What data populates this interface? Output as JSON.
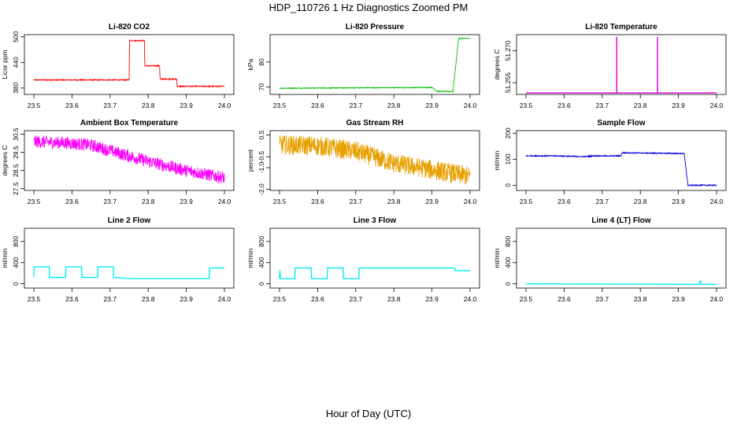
{
  "page": {
    "title": "HDP_110726  1 Hz Diagnostics Zoomed PM",
    "xlabel": "Hour of Day (UTC)"
  },
  "chart_data": [
    {
      "type": "line",
      "title": "Li-820 CO2",
      "xlabel": "",
      "ylabel": "Licor ppm",
      "color": "#ff0000",
      "xlim": [
        23.5,
        24.0
      ],
      "ylim": [
        365,
        505
      ],
      "xticks": [
        23.5,
        23.6,
        23.7,
        23.8,
        23.9,
        24.0
      ],
      "xtick_labels": [
        "23.5",
        "23.6",
        "23.7",
        "23.8",
        "23.9",
        "24.0"
      ],
      "yticks": [
        380,
        440,
        500
      ],
      "ytick_labels": [
        "380",
        "440",
        "500"
      ],
      "noise": 1.2,
      "series": [
        {
          "x": [
            23.5,
            23.75,
            23.751,
            23.79,
            23.791,
            23.83,
            23.831,
            23.875,
            23.876,
            23.96,
            23.961,
            24.0
          ],
          "y": [
            399,
            399,
            491,
            491,
            432,
            432,
            401,
            401,
            384,
            384,
            384,
            384
          ]
        }
      ]
    },
    {
      "type": "line",
      "title": "Li-820 Pressure",
      "xlabel": "",
      "ylabel": "kPa",
      "color": "#00c000",
      "xlim": [
        23.5,
        24.0
      ],
      "ylim": [
        67,
        91
      ],
      "xticks": [
        23.5,
        23.6,
        23.7,
        23.8,
        23.9,
        24.0
      ],
      "xtick_labels": [
        "23.5",
        "23.6",
        "23.7",
        "23.8",
        "23.9",
        "24.0"
      ],
      "yticks": [
        70,
        80
      ],
      "ytick_labels": [
        "70",
        "80"
      ],
      "noise": 0.15,
      "series": [
        {
          "x": [
            23.5,
            23.9,
            23.915,
            23.955,
            23.97,
            24.0
          ],
          "y": [
            69.5,
            69.8,
            68.2,
            68.2,
            89.5,
            89.5
          ]
        }
      ]
    },
    {
      "type": "line",
      "title": "Li-820 Temperature",
      "xlabel": "",
      "ylabel": "degrees C",
      "color": "#e000e0",
      "xlim": [
        23.5,
        24.0
      ],
      "ylim": [
        51.2495,
        51.2775
      ],
      "xticks": [
        23.5,
        23.6,
        23.7,
        23.8,
        23.9,
        24.0
      ],
      "xtick_labels": [
        "23.5",
        "23.6",
        "23.7",
        "23.8",
        "23.9",
        "24.0"
      ],
      "yticks": [
        51.255,
        51.27
      ],
      "ytick_labels": [
        "51.255",
        "51.270"
      ],
      "noise": 0,
      "series": [
        {
          "x": [
            23.5,
            23.738,
            23.7381,
            23.7382,
            23.845,
            23.8451,
            23.8452,
            24.0
          ],
          "y": [
            51.2502,
            51.2502,
            51.2765,
            51.2502,
            51.2502,
            51.2765,
            51.2502,
            51.2502
          ]
        }
      ]
    },
    {
      "type": "line",
      "title": "Ambient Box Temperature",
      "xlabel": "",
      "ylabel": "degrees C",
      "color": "#ff00ff",
      "xlim": [
        23.5,
        24.0
      ],
      "ylim": [
        27.4,
        30.7
      ],
      "xticks": [
        23.5,
        23.6,
        23.7,
        23.8,
        23.9,
        24.0
      ],
      "xtick_labels": [
        "23.5",
        "23.6",
        "23.7",
        "23.8",
        "23.9",
        "24.0"
      ],
      "yticks": [
        27.5,
        28.5,
        29.5,
        30.5
      ],
      "ytick_labels": [
        "27.5",
        "28.5",
        "29.5",
        "30.5"
      ],
      "noise": 0.35,
      "series": [
        {
          "x": [
            23.5,
            23.6,
            23.65,
            23.7,
            23.8,
            23.9,
            24.0
          ],
          "y": [
            30.1,
            30.0,
            29.9,
            29.6,
            29.0,
            28.5,
            28.1
          ]
        }
      ]
    },
    {
      "type": "line",
      "title": "Gas Stream RH",
      "xlabel": "",
      "ylabel": "percent",
      "color": "#e8a000",
      "xlim": [
        23.5,
        24.0
      ],
      "ylim": [
        -2.05,
        0.7
      ],
      "xticks": [
        23.5,
        23.6,
        23.7,
        23.8,
        23.9,
        24.0
      ],
      "xtick_labels": [
        "23.5",
        "23.6",
        "23.7",
        "23.8",
        "23.9",
        "24.0"
      ],
      "yticks": [
        -2.0,
        -1.0,
        -0.5,
        0.5
      ],
      "ytick_labels": [
        "-2.0",
        "-1.0",
        "-0.5",
        "0.5"
      ],
      "noise": 0.45,
      "series": [
        {
          "x": [
            23.5,
            23.6,
            23.7,
            23.8,
            23.9,
            24.0
          ],
          "y": [
            0.05,
            0.0,
            -0.25,
            -0.8,
            -1.1,
            -1.4
          ]
        }
      ]
    },
    {
      "type": "line",
      "title": "Sample Flow",
      "xlabel": "",
      "ylabel": "ml/min",
      "color": "#0000dd",
      "xlim": [
        23.5,
        24.0
      ],
      "ylim": [
        -20,
        210
      ],
      "xticks": [
        23.5,
        23.6,
        23.7,
        23.8,
        23.9,
        24.0
      ],
      "xtick_labels": [
        "23.5",
        "23.6",
        "23.7",
        "23.8",
        "23.9",
        "24.0"
      ],
      "yticks": [
        0,
        100,
        200
      ],
      "ytick_labels": [
        "0",
        "100",
        "200"
      ],
      "noise": 2,
      "series": [
        {
          "x": [
            23.5,
            23.58,
            23.65,
            23.68,
            23.75,
            23.751,
            23.915,
            23.925,
            24.0
          ],
          "y": [
            113,
            113,
            110,
            113,
            113,
            125,
            122,
            0,
            0
          ]
        }
      ]
    },
    {
      "type": "line",
      "title": "Line 2 Flow",
      "xlabel": "",
      "ylabel": "ml/min",
      "color": "#00f0f0",
      "xlim": [
        23.5,
        24.0
      ],
      "ylim": [
        -80,
        1050
      ],
      "xticks": [
        23.5,
        23.6,
        23.7,
        23.8,
        23.9,
        24.0
      ],
      "xtick_labels": [
        "23.5",
        "23.6",
        "23.7",
        "23.8",
        "23.9",
        "24.0"
      ],
      "yticks": [
        0,
        400,
        800
      ],
      "ytick_labels": [
        "0",
        "400",
        "800"
      ],
      "noise": 0,
      "series": [
        {
          "x": [
            23.5,
            23.501,
            23.54,
            23.541,
            23.583,
            23.584,
            23.625,
            23.626,
            23.667,
            23.668,
            23.708,
            23.709,
            23.75,
            23.96,
            23.961,
            24.0
          ],
          "y": [
            130,
            320,
            320,
            120,
            120,
            320,
            320,
            120,
            120,
            320,
            320,
            120,
            100,
            100,
            300,
            300
          ]
        }
      ]
    },
    {
      "type": "line",
      "title": "Line 3 Flow",
      "xlabel": "",
      "ylabel": "ml/min",
      "color": "#00f0f0",
      "xlim": [
        23.5,
        24.0
      ],
      "ylim": [
        -80,
        1050
      ],
      "xticks": [
        23.5,
        23.6,
        23.7,
        23.8,
        23.9,
        24.0
      ],
      "xtick_labels": [
        "23.5",
        "23.6",
        "23.7",
        "23.8",
        "23.9",
        "24.0"
      ],
      "yticks": [
        0,
        400,
        800
      ],
      "ytick_labels": [
        "0",
        "400",
        "800"
      ],
      "noise": 0,
      "series": [
        {
          "x": [
            23.5,
            23.501,
            23.502,
            23.54,
            23.541,
            23.583,
            23.584,
            23.625,
            23.626,
            23.667,
            23.668,
            23.708,
            23.709,
            23.96,
            23.961,
            24.0
          ],
          "y": [
            100,
            260,
            100,
            100,
            300,
            300,
            100,
            100,
            300,
            300,
            100,
            100,
            300,
            300,
            250,
            250
          ]
        }
      ]
    },
    {
      "type": "line",
      "title": "Line 4 (LT) Flow",
      "xlabel": "",
      "ylabel": "ml/min",
      "color": "#00f0f0",
      "xlim": [
        23.5,
        24.0
      ],
      "ylim": [
        -80,
        1050
      ],
      "xticks": [
        23.5,
        23.6,
        23.7,
        23.8,
        23.9,
        24.0
      ],
      "xtick_labels": [
        "23.5",
        "23.6",
        "23.7",
        "23.8",
        "23.9",
        "24.0"
      ],
      "yticks": [
        0,
        400,
        800
      ],
      "ytick_labels": [
        "0",
        "400",
        "800"
      ],
      "noise": 0,
      "series": [
        {
          "x": [
            23.5,
            23.95,
            23.955,
            23.9575,
            23.96,
            24.0
          ],
          "y": [
            0,
            -10,
            -10,
            70,
            -10,
            -10
          ]
        }
      ]
    }
  ]
}
